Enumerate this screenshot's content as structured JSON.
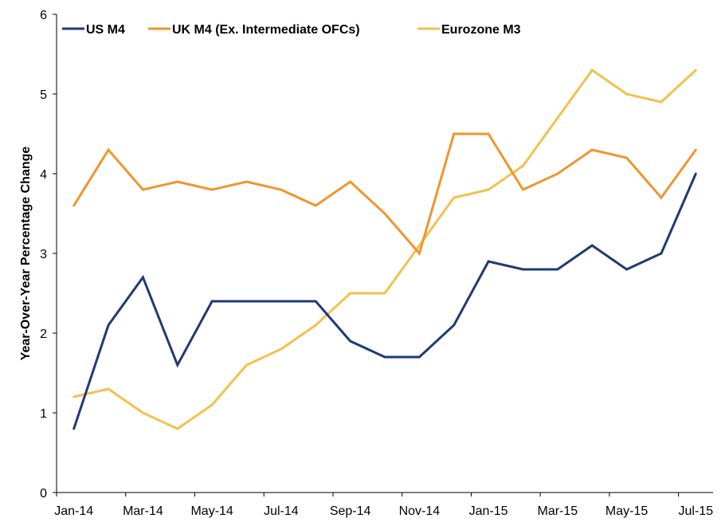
{
  "chart_data": {
    "type": "line",
    "title": "",
    "xlabel": "",
    "ylabel": "Year-Over-Year Percentage Change",
    "ylim": [
      0,
      6
    ],
    "yticks": [
      "0",
      "1",
      "2",
      "3",
      "4",
      "5",
      "6"
    ],
    "x": [
      "Jan-14",
      "Feb-14",
      "Mar-14",
      "Apr-14",
      "May-14",
      "Jun-14",
      "Jul-14",
      "Aug-14",
      "Sep-14",
      "Oct-14",
      "Nov-14",
      "Dec-14",
      "Jan-15",
      "Feb-15",
      "Mar-15",
      "Apr-15",
      "May-15",
      "Jun-15",
      "Jul-15"
    ],
    "xtick_labels": [
      "Jan-14",
      "Mar-14",
      "May-14",
      "Jul-14",
      "Sep-14",
      "Nov-14",
      "Jan-15",
      "Mar-15",
      "May-15",
      "Jul-15"
    ],
    "grid": false,
    "legend": "top",
    "series": [
      {
        "name": "US M4",
        "color": "#1F3A73",
        "values": [
          0.8,
          2.1,
          2.7,
          1.6,
          2.4,
          2.4,
          2.4,
          2.4,
          1.9,
          1.7,
          1.7,
          2.1,
          2.9,
          2.8,
          2.8,
          3.1,
          2.8,
          3.0,
          4.0
        ]
      },
      {
        "name": "UK M4 (Ex. Intermediate OFCs)",
        "color": "#F0952E",
        "values": [
          3.6,
          4.3,
          3.8,
          3.9,
          3.8,
          3.9,
          3.8,
          3.6,
          3.9,
          3.5,
          3.0,
          4.5,
          4.5,
          3.8,
          4.0,
          4.3,
          4.2,
          3.7,
          4.3
        ]
      },
      {
        "name": "Eurozone M3",
        "color": "#F2C14E",
        "values": [
          1.2,
          1.3,
          1.0,
          0.8,
          1.1,
          1.6,
          1.8,
          2.1,
          2.5,
          2.5,
          3.1,
          3.7,
          3.8,
          4.1,
          4.7,
          5.3,
          5.0,
          4.9,
          5.3
        ]
      }
    ]
  }
}
